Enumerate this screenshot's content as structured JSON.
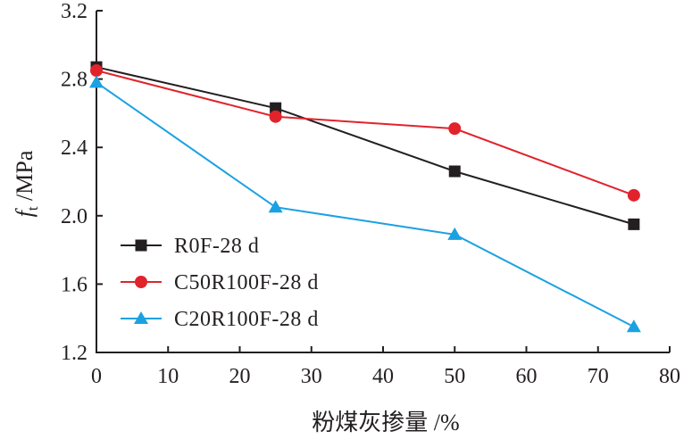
{
  "chart_data": {
    "type": "line",
    "title": "",
    "xlabel": "粉煤灰掺量 /%",
    "ylabel_symbol": "f",
    "ylabel_subscript": "t",
    "ylabel_unit": " /MPa",
    "xlim": [
      0,
      80
    ],
    "ylim": [
      1.2,
      3.2
    ],
    "xticks": [
      0,
      10,
      20,
      30,
      40,
      50,
      60,
      70,
      80
    ],
    "xtick_labels": [
      "0",
      "10",
      "20",
      "30",
      "40",
      "50",
      "60",
      "70",
      "80"
    ],
    "yticks": [
      1.2,
      1.6,
      2.0,
      2.4,
      2.8,
      3.2
    ],
    "ytick_labels": [
      "1.2",
      "1.6",
      "2.0",
      "2.4",
      "2.8",
      "3.2"
    ],
    "grid": false,
    "legend_position": "bottom-left",
    "x": [
      0,
      25,
      50,
      75
    ],
    "series": [
      {
        "name": "R0F-28 d",
        "marker": "square",
        "color": "#231f20",
        "values": [
          2.87,
          2.63,
          2.26,
          1.95
        ]
      },
      {
        "name": "C50R100F-28 d",
        "marker": "circle",
        "color": "#e1232b",
        "values": [
          2.85,
          2.58,
          2.51,
          2.12
        ]
      },
      {
        "name": "C20R100F-28 d",
        "marker": "triangle",
        "color": "#1ba1e2",
        "values": [
          2.78,
          2.05,
          1.89,
          1.35
        ]
      }
    ]
  }
}
